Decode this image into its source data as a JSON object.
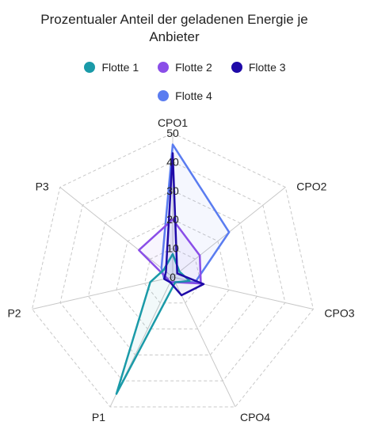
{
  "chart_data": {
    "type": "radar",
    "title": "Prozentualer Anteil der geladenen Energie je Anbieter",
    "axes": [
      "CPO1",
      "CPO2",
      "CPO3",
      "CPO4",
      "P1",
      "P2",
      "P3"
    ],
    "rlim": [
      0,
      50
    ],
    "ticks": [
      0,
      10,
      20,
      30,
      40,
      50
    ],
    "grid": true,
    "legend_position": "top",
    "series": [
      {
        "name": "Flotte 1",
        "color": "#1a9aa8",
        "values": [
          8,
          3,
          6,
          2,
          45,
          8,
          4
        ]
      },
      {
        "name": "Flotte 2",
        "color": "#8a4ee8",
        "values": [
          20,
          12,
          10,
          2,
          2,
          2,
          15
        ]
      },
      {
        "name": "Flotte 3",
        "color": "#1f0aa8",
        "values": [
          43,
          2,
          11,
          7,
          2,
          3,
          3
        ]
      },
      {
        "name": "Flotte 4",
        "color": "#5a7cf0",
        "values": [
          46,
          25,
          8,
          2,
          2,
          3,
          5
        ]
      }
    ]
  }
}
